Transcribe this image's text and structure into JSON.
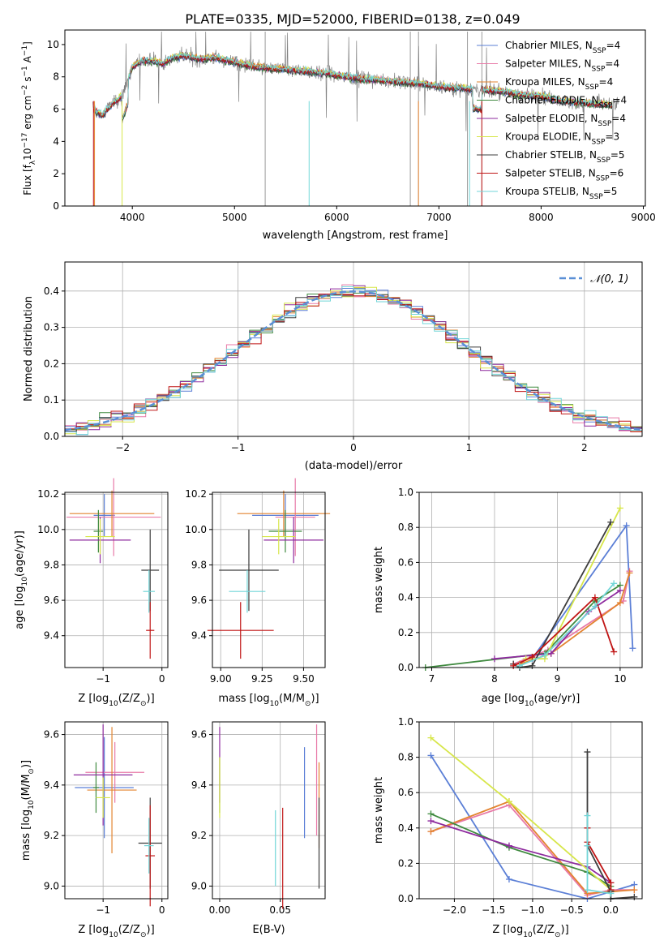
{
  "title": "PLATE=0335, MJD=52000, FIBERID=0138, z=0.049",
  "colors": {
    "Chabrier MILES": "#5b7fd6",
    "Salpeter MILES": "#e87aa8",
    "Kroupa MILES": "#e3832f",
    "Chabrier ELODIE": "#3f8a3f",
    "Salpeter ELODIE": "#8e2a9e",
    "Kroupa ELODIE": "#d7e64a",
    "Chabrier STELIB": "#3d3d3d",
    "Salpeter STELIB": "#c01515",
    "Kroupa STELIB": "#72d6d8",
    "data": "#808080",
    "normal": "#5a8fd6"
  },
  "chart_data": [
    {
      "type": "line",
      "title": "PLATE=0335, MJD=52000, FIBERID=0138, z=0.049",
      "xlabel": "wavelength [Angstrom, rest frame]",
      "ylabel_main": "Flux [f",
      "ylabel_sub": "λ",
      "ylabel_rest": "10",
      "ylabel_exp": "−17",
      "ylabel_units": " erg cm",
      "ylabel_units_exp": "−2",
      "ylabel_s": " s",
      "ylabel_s_exp": "−1",
      "ylabel_A": " A",
      "ylabel_A_exp": "−1",
      "ylabel_close": "]",
      "xlim": [
        3340,
        9020
      ],
      "ylim": [
        0,
        10.9
      ],
      "xticks": [
        4000,
        5000,
        6000,
        7000,
        8000,
        9000
      ],
      "yticks": [
        0,
        2,
        4,
        6,
        8,
        10
      ],
      "legend_loc": "right",
      "legend": [
        {
          "name": "Chabrier MILES, N",
          "sub": "SSP",
          "val": "=4",
          "key": "Chabrier MILES"
        },
        {
          "name": "Salpeter MILES, N",
          "sub": "SSP",
          "val": "=4",
          "key": "Salpeter MILES"
        },
        {
          "name": "Kroupa MILES, N",
          "sub": "SSP",
          "val": "=4",
          "key": "Kroupa MILES"
        },
        {
          "name": "Chabrier ELODIE, N",
          "sub": "SSP",
          "val": "=4",
          "key": "Chabrier ELODIE"
        },
        {
          "name": "Salpeter ELODIE, N",
          "sub": "SSP",
          "val": "=4",
          "key": "Salpeter ELODIE"
        },
        {
          "name": "Kroupa ELODIE, N",
          "sub": "SSP",
          "val": "=3",
          "key": "Kroupa ELODIE"
        },
        {
          "name": "Chabrier STELIB, N",
          "sub": "SSP",
          "val": "=5",
          "key": "Chabrier STELIB"
        },
        {
          "name": "Salpeter STELIB, N",
          "sub": "SSP",
          "val": "=6",
          "key": "Salpeter STELIB"
        },
        {
          "name": "Kroupa STELIB, N",
          "sub": "SSP",
          "val": "=5",
          "key": "Kroupa STELIB"
        }
      ],
      "spectrum_profile": [
        [
          3620,
          6.0
        ],
        [
          3700,
          5.6
        ],
        [
          3800,
          6.3
        ],
        [
          3900,
          6.8
        ],
        [
          4000,
          8.6
        ],
        [
          4100,
          9.0
        ],
        [
          4200,
          9.0
        ],
        [
          4300,
          8.8
        ],
        [
          4400,
          9.2
        ],
        [
          4500,
          9.3
        ],
        [
          4700,
          9.1
        ],
        [
          4800,
          9.2
        ],
        [
          5000,
          8.9
        ],
        [
          5200,
          8.6
        ],
        [
          5400,
          8.5
        ],
        [
          5600,
          8.4
        ],
        [
          5800,
          8.3
        ],
        [
          6000,
          8.1
        ],
        [
          6200,
          7.9
        ],
        [
          6400,
          7.8
        ],
        [
          6600,
          7.7
        ],
        [
          6800,
          7.6
        ],
        [
          7000,
          7.4
        ],
        [
          7200,
          7.3
        ],
        [
          7400,
          7.2
        ],
        [
          7600,
          7.1
        ],
        [
          7800,
          6.9
        ],
        [
          8000,
          6.8
        ],
        [
          8200,
          6.5
        ],
        [
          8400,
          6.4
        ],
        [
          8600,
          6.3
        ],
        [
          8750,
          6.2
        ]
      ]
    },
    {
      "type": "histogram",
      "xlabel": "(data-model)/error",
      "ylabel": "Normed distribution",
      "xlim": [
        -2.5,
        2.5
      ],
      "ylim": [
        0,
        0.48
      ],
      "xticks": [
        -2,
        -1,
        0,
        1,
        2
      ],
      "xticklabels": [
        "−2",
        "−1",
        "0",
        "1",
        "2"
      ],
      "yticks": [
        0.0,
        0.1,
        0.2,
        0.3,
        0.4
      ],
      "yticklabels": [
        "0.0",
        "0.1",
        "0.2",
        "0.3",
        "0.4"
      ],
      "legend": "𝒩(0, 1)",
      "bin_width": 0.1
    },
    {
      "type": "scatter",
      "xlabel": "Z [log",
      "xlabel_sub": "10",
      "xlabel_rest": "(Z/Z",
      "xlabel_sun": "⊙",
      "xlabel_close": ")]",
      "ylabel": "age  [log",
      "ylabel_sub": "10",
      "ylabel_rest": "(age/yr)]",
      "xlim": [
        -1.65,
        0.1
      ],
      "ylim": [
        9.22,
        10.21
      ],
      "xticks": [
        -1,
        0
      ],
      "xticklabels": [
        "−1",
        "0"
      ],
      "yticks": [
        9.4,
        9.6,
        9.8,
        10.0,
        10.2
      ],
      "yticklabels": [
        "9.4",
        "9.6",
        "9.8",
        "10.0",
        "10.2"
      ],
      "points": [
        {
          "key": "Chabrier MILES",
          "x": -0.98,
          "xerr": 0.18,
          "y": 10.08,
          "yerr": 0.12
        },
        {
          "key": "Salpeter MILES",
          "x": -0.82,
          "xerr": 0.8,
          "y": 10.07,
          "yerr": 0.22
        },
        {
          "key": "Kroupa MILES",
          "x": -0.85,
          "xerr": 0.72,
          "y": 10.09,
          "yerr": 0.13
        },
        {
          "key": "Chabrier ELODIE",
          "x": -1.08,
          "xerr": 0.08,
          "y": 9.99,
          "yerr": 0.12
        },
        {
          "key": "Salpeter ELODIE",
          "x": -1.05,
          "xerr": 0.52,
          "y": 9.94,
          "yerr": 0.13
        },
        {
          "key": "Kroupa ELODIE",
          "x": -1.05,
          "xerr": 0.25,
          "y": 9.96,
          "yerr": 0.1
        },
        {
          "key": "Chabrier STELIB",
          "x": -0.2,
          "xerr": 0.15,
          "y": 9.77,
          "yerr": 0.23
        },
        {
          "key": "Salpeter STELIB",
          "x": -0.2,
          "xerr": 0.07,
          "y": 9.43,
          "yerr": 0.16
        },
        {
          "key": "Kroupa STELIB",
          "x": -0.22,
          "xerr": 0.1,
          "y": 9.65,
          "yerr": 0.12
        }
      ]
    },
    {
      "type": "scatter",
      "xlabel": "mass [log",
      "xlabel_sub": "10",
      "xlabel_rest": "(M/M",
      "xlabel_sun": "⊙",
      "xlabel_close": ")]",
      "xlim": [
        8.95,
        9.63
      ],
      "ylim": [
        9.22,
        10.21
      ],
      "xticks": [
        9.0,
        9.25,
        9.5
      ],
      "xticklabels": [
        "9.00",
        "9.25",
        "9.50"
      ],
      "yticks": [
        9.4,
        9.6,
        9.8,
        10.0,
        10.2
      ],
      "yticklabels": [
        "9.4",
        "9.6",
        "9.8",
        "10.0",
        "10.2"
      ],
      "points": [
        {
          "key": "Chabrier MILES",
          "x": 9.39,
          "xerr": 0.2,
          "y": 10.08,
          "yerr": 0.12
        },
        {
          "key": "Salpeter MILES",
          "x": 9.45,
          "xerr": 0.12,
          "y": 10.07,
          "yerr": 0.22
        },
        {
          "key": "Kroupa MILES",
          "x": 9.38,
          "xerr": 0.28,
          "y": 10.09,
          "yerr": 0.13
        },
        {
          "key": "Chabrier ELODIE",
          "x": 9.39,
          "xerr": 0.1,
          "y": 9.99,
          "yerr": 0.12
        },
        {
          "key": "Salpeter ELODIE",
          "x": 9.44,
          "xerr": 0.18,
          "y": 9.94,
          "yerr": 0.13
        },
        {
          "key": "Kroupa ELODIE",
          "x": 9.35,
          "xerr": 0.1,
          "y": 9.96,
          "yerr": 0.1
        },
        {
          "key": "Chabrier STELIB",
          "x": 9.17,
          "xerr": 0.18,
          "y": 9.77,
          "yerr": 0.23
        },
        {
          "key": "Salpeter STELIB",
          "x": 9.12,
          "xerr": 0.2,
          "y": 9.43,
          "yerr": 0.16
        },
        {
          "key": "Kroupa STELIB",
          "x": 9.16,
          "xerr": 0.11,
          "y": 9.65,
          "yerr": 0.12
        }
      ]
    },
    {
      "type": "line",
      "xlabel": "age  [log",
      "xlabel_sub": "10",
      "xlabel_rest": "(age/yr)]",
      "ylabel": "mass weight",
      "xlim": [
        6.8,
        10.35
      ],
      "ylim": [
        0,
        1.0
      ],
      "xticks": [
        7,
        8,
        9,
        10
      ],
      "xticklabels": [
        "7",
        "8",
        "9",
        "10"
      ],
      "yticks": [
        0.0,
        0.2,
        0.4,
        0.6,
        0.8,
        1.0
      ],
      "yticklabels": [
        "0.0",
        "0.2",
        "0.4",
        "0.6",
        "0.8",
        "1.0"
      ],
      "series": [
        {
          "key": "Chabrier MILES",
          "x": [
            8.6,
            10.1,
            10.2
          ],
          "y": [
            0.05,
            0.81,
            0.11
          ]
        },
        {
          "key": "Salpeter MILES",
          "x": [
            8.3,
            8.85,
            10.05,
            10.15
          ],
          "y": [
            0.02,
            0.1,
            0.38,
            0.55
          ]
        },
        {
          "key": "Kroupa MILES",
          "x": [
            8.4,
            8.9,
            10.0,
            10.15
          ],
          "y": [
            0.02,
            0.08,
            0.37,
            0.54
          ]
        },
        {
          "key": "Chabrier ELODIE",
          "x": [
            6.9,
            8.8,
            9.6,
            10.0
          ],
          "y": [
            0.0,
            0.08,
            0.38,
            0.47
          ]
        },
        {
          "key": "Salpeter ELODIE",
          "x": [
            8.0,
            8.9,
            9.5,
            10.0
          ],
          "y": [
            0.05,
            0.08,
            0.32,
            0.44
          ]
        },
        {
          "key": "Kroupa ELODIE",
          "x": [
            8.5,
            8.8,
            10.0
          ],
          "y": [
            0.05,
            0.05,
            0.91
          ]
        },
        {
          "key": "Chabrier STELIB",
          "x": [
            8.3,
            8.4,
            8.6,
            9.85
          ],
          "y": [
            0.02,
            0.0,
            0.01,
            0.83
          ]
        },
        {
          "key": "Salpeter STELIB",
          "x": [
            8.3,
            8.6,
            9.6,
            9.9
          ],
          "y": [
            0.01,
            0.06,
            0.4,
            0.09
          ]
        },
        {
          "key": "Kroupa STELIB",
          "x": [
            8.4,
            8.8,
            9.6,
            9.9
          ],
          "y": [
            0.01,
            0.07,
            0.35,
            0.48
          ]
        }
      ]
    },
    {
      "type": "scatter",
      "xlabel": "Z [log",
      "xlabel_sub": "10",
      "xlabel_rest": "(Z/Z",
      "xlabel_sun": "⊙",
      "xlabel_close": ")]",
      "ylabel": "mass [log",
      "ylabel_sub": "10",
      "ylabel_rest": "(M/M",
      "ylabel_sun": "⊙",
      "ylabel_close": ")]",
      "xlim": [
        -1.65,
        0.1
      ],
      "ylim": [
        8.95,
        9.65
      ],
      "xticks": [
        -1,
        0
      ],
      "xticklabels": [
        "−1",
        "0"
      ],
      "yticks": [
        9.0,
        9.2,
        9.4,
        9.6
      ],
      "yticklabels": [
        "9.0",
        "9.2",
        "9.4",
        "9.6"
      ],
      "points": [
        {
          "key": "Chabrier MILES",
          "x": -0.98,
          "xerr": 0.5,
          "y": 9.39,
          "yerr": 0.2
        },
        {
          "key": "Salpeter MILES",
          "x": -0.8,
          "xerr": 0.5,
          "y": 9.45,
          "yerr": 0.12
        },
        {
          "key": "Kroupa MILES",
          "x": -0.85,
          "xerr": 0.42,
          "y": 9.38,
          "yerr": 0.25
        },
        {
          "key": "Chabrier ELODIE",
          "x": -1.12,
          "xerr": 0.05,
          "y": 9.39,
          "yerr": 0.1
        },
        {
          "key": "Salpeter ELODIE",
          "x": -1.0,
          "xerr": 0.5,
          "y": 9.44,
          "yerr": 0.2
        },
        {
          "key": "Kroupa ELODIE",
          "x": -1.0,
          "xerr": 0.12,
          "y": 9.35,
          "yerr": 0.08
        },
        {
          "key": "Chabrier STELIB",
          "x": -0.2,
          "xerr": 0.2,
          "y": 9.17,
          "yerr": 0.18
        },
        {
          "key": "Salpeter STELIB",
          "x": -0.2,
          "xerr": 0.08,
          "y": 9.12,
          "yerr": 0.2
        },
        {
          "key": "Kroupa STELIB",
          "x": -0.22,
          "xerr": 0.08,
          "y": 9.16,
          "yerr": 0.11
        }
      ]
    },
    {
      "type": "scatter",
      "xlabel": "E(B-V)",
      "xlim": [
        -0.006,
        0.087
      ],
      "ylim": [
        8.95,
        9.65
      ],
      "xticks": [
        0.0,
        0.05
      ],
      "xticklabels": [
        "0.00",
        "0.05"
      ],
      "yticks": [
        9.0,
        9.2,
        9.4,
        9.6
      ],
      "yticklabels": [
        "9.0",
        "9.2",
        "9.4",
        "9.6"
      ],
      "points": [
        {
          "key": "Chabrier MILES",
          "x": 0.07,
          "y": 9.37,
          "yerr": 0.18
        },
        {
          "key": "Salpeter MILES",
          "x": 0.08,
          "y": 9.42,
          "yerr": 0.22
        },
        {
          "key": "Kroupa MILES",
          "x": 0.082,
          "y": 9.32,
          "yerr": 0.17
        },
        {
          "key": "Chabrier ELODIE",
          "x": 0.0,
          "y": 9.4,
          "yerr": 0.11
        },
        {
          "key": "Salpeter ELODIE",
          "x": 0.0,
          "y": 9.48,
          "yerr": 0.15
        },
        {
          "key": "Kroupa ELODIE",
          "x": 0.0,
          "y": 9.39,
          "yerr": 0.12
        },
        {
          "key": "Chabrier STELIB",
          "x": 0.082,
          "y": 9.17,
          "yerr": 0.18
        },
        {
          "key": "Salpeter STELIB",
          "x": 0.052,
          "y": 9.11,
          "yerr": 0.2
        },
        {
          "key": "Kroupa STELIB",
          "x": 0.046,
          "y": 9.15,
          "yerr": 0.15
        }
      ]
    },
    {
      "type": "line",
      "xlabel": "Z [log",
      "xlabel_sub": "10",
      "xlabel_rest": "(Z/Z",
      "xlabel_sun": "⊙",
      "xlabel_close": ")]",
      "ylabel": "mass weight",
      "xlim": [
        -2.45,
        0.4
      ],
      "ylim": [
        0,
        1.0
      ],
      "xticks": [
        -2.0,
        -1.5,
        -1.0,
        -0.5,
        0.0
      ],
      "xticklabels": [
        "−2.0",
        "−1.5",
        "−1.0",
        "−0.5",
        "0.0"
      ],
      "yticks": [
        0.0,
        0.2,
        0.4,
        0.6,
        0.8,
        1.0
      ],
      "yticklabels": [
        "0.0",
        "0.2",
        "0.4",
        "0.6",
        "0.8",
        "1.0"
      ],
      "series": [
        {
          "key": "Chabrier MILES",
          "x": [
            -2.3,
            -1.3,
            -0.3,
            0.3
          ],
          "y": [
            0.81,
            0.11,
            0.0,
            0.08
          ]
        },
        {
          "key": "Salpeter MILES",
          "x": [
            -2.3,
            -1.3,
            -0.3,
            0.0,
            0.3
          ],
          "y": [
            0.38,
            0.53,
            0.02,
            0.05,
            0.05
          ]
        },
        {
          "key": "Kroupa MILES",
          "x": [
            -2.3,
            -1.3,
            -0.3,
            0.0,
            0.3
          ],
          "y": [
            0.38,
            0.55,
            0.03,
            0.04,
            0.05
          ]
        },
        {
          "key": "Chabrier ELODIE",
          "x": [
            -2.3,
            -1.3,
            -0.3,
            0.0
          ],
          "y": [
            0.48,
            0.29,
            0.15,
            0.07
          ]
        },
        {
          "key": "Salpeter ELODIE",
          "x": [
            -2.3,
            -1.3,
            -0.3,
            0.0
          ],
          "y": [
            0.44,
            0.3,
            0.18,
            0.09
          ]
        },
        {
          "key": "Kroupa ELODIE",
          "x": [
            -2.3,
            -1.3,
            0.0
          ],
          "y": [
            0.91,
            0.55,
            0.05
          ]
        },
        {
          "key": "Chabrier STELIB",
          "x": [
            -0.3,
            -0.3,
            0.0,
            0.0,
            0.3
          ],
          "y": [
            0.83,
            0.3,
            0.04,
            0.0,
            0.01
          ]
        },
        {
          "key": "Salpeter STELIB",
          "x": [
            -0.3,
            -0.3,
            0.0,
            0.0
          ],
          "y": [
            0.4,
            0.32,
            0.09,
            0.05
          ]
        },
        {
          "key": "Kroupa STELIB",
          "x": [
            -0.3,
            -0.3,
            -0.3,
            0.0
          ],
          "y": [
            0.47,
            0.3,
            0.05,
            0.03
          ]
        }
      ]
    }
  ]
}
